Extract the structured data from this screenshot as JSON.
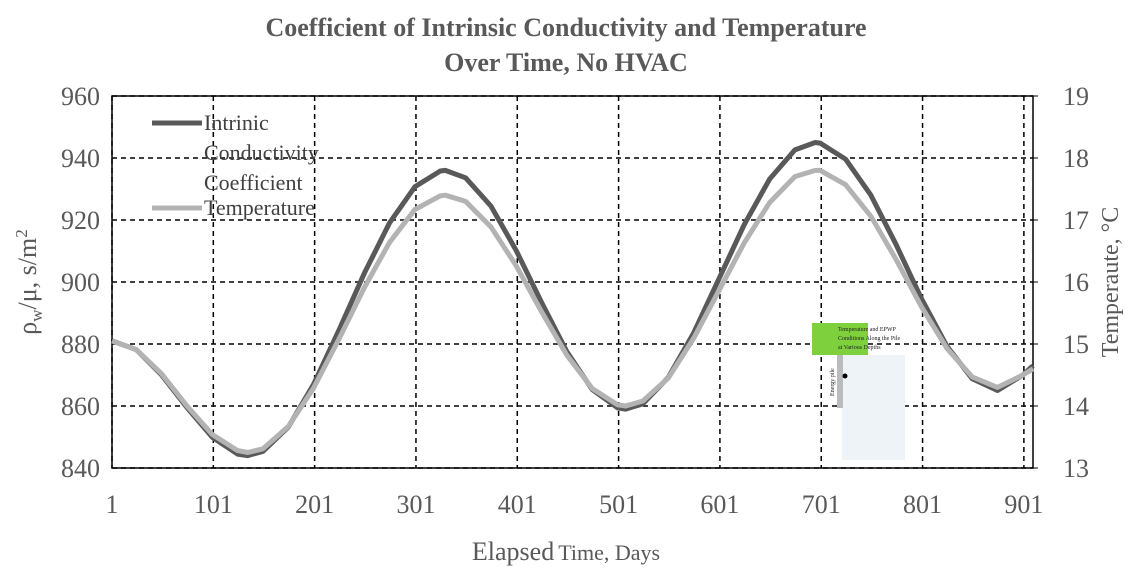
{
  "chart_data": {
    "type": "line",
    "title": [
      "Coefficient of Intrinsic Conductivity and Temperature",
      "Over Time, No HVAC"
    ],
    "xlabel": [
      "Elapsed",
      "Time, Days"
    ],
    "ylabel": [
      "ρ",
      "w",
      "/μ, s/m",
      "2"
    ],
    "y2label": "Temperaute, °C",
    "x": [
      1,
      25,
      50,
      75,
      100,
      125,
      135,
      150,
      175,
      200,
      225,
      250,
      275,
      300,
      325,
      330,
      350,
      375,
      400,
      425,
      450,
      475,
      500,
      508,
      525,
      550,
      575,
      600,
      625,
      650,
      675,
      695,
      700,
      725,
      750,
      775,
      800,
      825,
      850,
      875,
      900,
      910
    ],
    "series": [
      {
        "name": "Intrinic Conductivity Coefficient",
        "color": "#595959",
        "values": [
          881,
          878.2,
          870,
          859.5,
          849.9,
          844.5,
          844,
          845.4,
          853.2,
          867,
          884.5,
          902.8,
          919.1,
          930.7,
          935.8,
          936,
          933.6,
          924.5,
          910.1,
          893.4,
          877.5,
          865.3,
          859.4,
          859,
          860.7,
          869.2,
          883.5,
          901,
          918.5,
          933.2,
          942.6,
          945,
          944.8,
          939.6,
          928,
          912,
          894.6,
          879.3,
          868.8,
          865,
          870,
          873
        ]
      },
      {
        "name": "Temperature",
        "color": "#b3b3b3",
        "axis": "y2",
        "values": [
          15.05,
          14.91,
          14.52,
          14.0,
          13.54,
          13.28,
          13.25,
          13.31,
          13.67,
          14.29,
          15.08,
          15.91,
          16.64,
          17.17,
          17.39,
          17.4,
          17.3,
          16.89,
          16.26,
          15.52,
          14.82,
          14.28,
          14.02,
          14.0,
          14.08,
          14.45,
          15.09,
          15.86,
          16.63,
          17.28,
          17.7,
          17.8,
          17.8,
          17.57,
          17.06,
          16.36,
          15.6,
          14.93,
          14.47,
          14.3,
          14.5,
          14.6
        ]
      }
    ],
    "xlim": [
      1,
      910
    ],
    "xticks": [
      1,
      101,
      201,
      301,
      401,
      501,
      601,
      701,
      801,
      901
    ],
    "ylim": [
      840,
      960
    ],
    "yticks": [
      840,
      860,
      880,
      900,
      920,
      940,
      960
    ],
    "y2lim": [
      13,
      19
    ],
    "y2ticks": [
      13,
      14,
      15,
      16,
      17,
      18,
      19
    ],
    "grid": true,
    "legend": "top-left"
  },
  "inset": {
    "title": [
      "Temperature and EPWP",
      "Conditions Along the Pile",
      "at Various Depths"
    ],
    "label": "Energy pile"
  }
}
